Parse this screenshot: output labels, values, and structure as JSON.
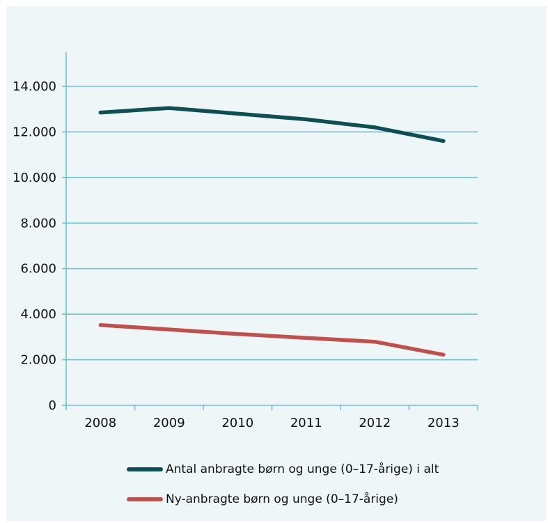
{
  "chart_data": {
    "type": "line",
    "categories": [
      "2008",
      "2009",
      "2010",
      "2011",
      "2012",
      "2013"
    ],
    "yticks": [
      0,
      2000,
      4000,
      6000,
      8000,
      10000,
      12000,
      14000
    ],
    "ytick_labels": [
      "0",
      "2.000",
      "4.000",
      "6.000",
      "8.000",
      "10.000",
      "12.000",
      "14.000"
    ],
    "ylim": [
      0,
      15500
    ],
    "grid": true,
    "legend_placement": "bottom",
    "series": [
      {
        "name": "Antal anbragte børn og unge (0–17-årige) i alt",
        "color": "#0d4f53",
        "values": [
          12850,
          13050,
          12800,
          12550,
          12200,
          11600
        ]
      },
      {
        "name": "Ny-anbragte børn og unge (0–17-årige)",
        "color": "#c0504d",
        "values": [
          3520,
          3330,
          3130,
          2960,
          2790,
          2220
        ]
      }
    ],
    "colors": {
      "background": "#eef6f7",
      "grid": "#6fc2cb",
      "axis": "#6fc2cb"
    }
  }
}
